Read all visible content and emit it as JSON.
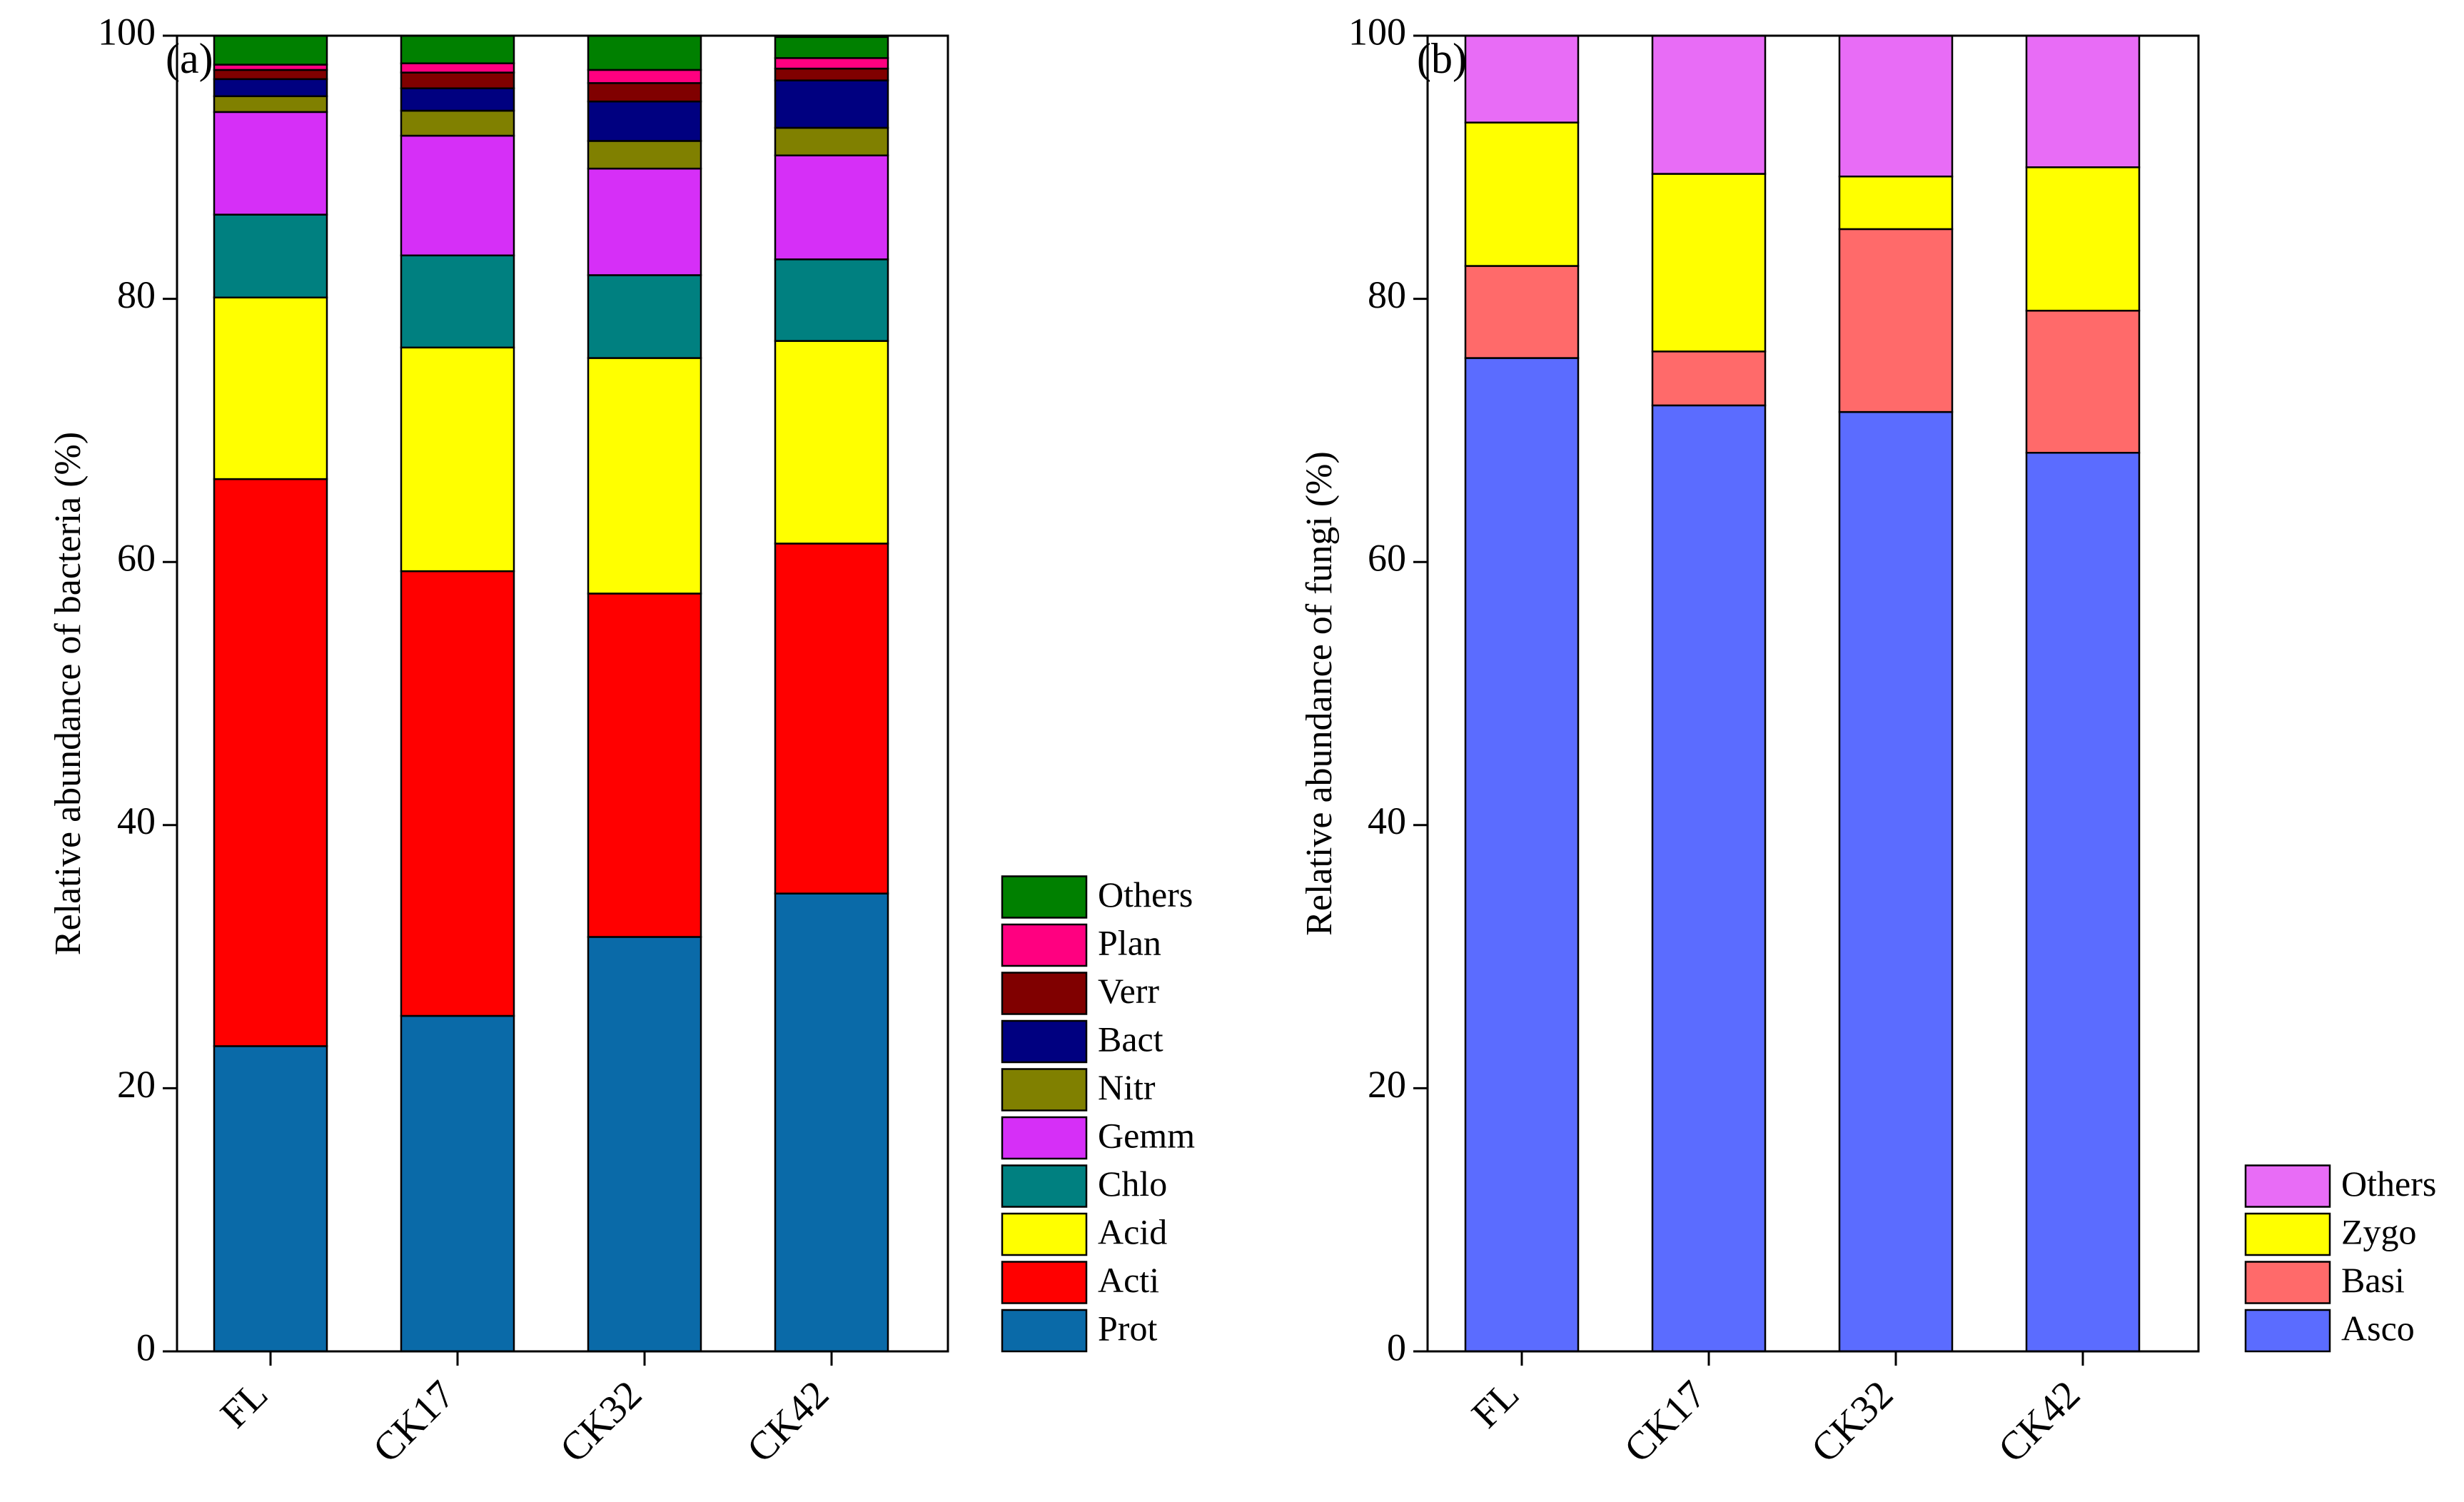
{
  "chart_data": [
    {
      "type": "stacked-bar",
      "panel_label": "(a)",
      "title": "",
      "xlabel": "",
      "ylabel": "Relative abundance of bacteria (%)",
      "ylim": [
        0,
        100
      ],
      "yticks": [
        "0",
        "20",
        "40",
        "60",
        "80",
        "100"
      ],
      "categories": [
        "FL",
        "CK17",
        "CK32",
        "CK42"
      ],
      "legend_position": "bottom-right-outside",
      "series": [
        {
          "name": "Prot",
          "color": "#0a6aa8",
          "values": [
            23.2,
            25.5,
            31.5,
            34.8
          ]
        },
        {
          "name": "Acti",
          "color": "#ff0000",
          "values": [
            43.1,
            33.8,
            26.1,
            26.6
          ]
        },
        {
          "name": "Acid",
          "color": "#ffff00",
          "values": [
            13.8,
            17.0,
            17.9,
            15.4
          ]
        },
        {
          "name": "Chlo",
          "color": "#008080",
          "values": [
            6.3,
            7.0,
            6.3,
            6.2
          ]
        },
        {
          "name": "Gemm",
          "color": "#d62ff7",
          "values": [
            7.8,
            9.1,
            8.1,
            7.9
          ]
        },
        {
          "name": "Nitr",
          "color": "#808000",
          "values": [
            1.2,
            1.9,
            2.1,
            2.1
          ]
        },
        {
          "name": "Bact",
          "color": "#000080",
          "values": [
            1.3,
            1.7,
            3.0,
            3.6
          ]
        },
        {
          "name": "Verr",
          "color": "#800000",
          "values": [
            0.7,
            1.2,
            1.4,
            0.9
          ]
        },
        {
          "name": "Plan",
          "color": "#ff0080",
          "values": [
            0.4,
            0.7,
            1.0,
            0.8
          ]
        },
        {
          "name": "Others",
          "color": "#008000",
          "values": [
            2.2,
            2.1,
            2.6,
            1.6
          ]
        }
      ]
    },
    {
      "type": "stacked-bar",
      "panel_label": "(b)",
      "title": "",
      "xlabel": "",
      "ylabel": "Relative abundance of fungi (%)",
      "ylim": [
        0,
        100
      ],
      "yticks": [
        "0",
        "20",
        "40",
        "60",
        "80",
        "100"
      ],
      "categories": [
        "FL",
        "CK17",
        "CK32",
        "CK42"
      ],
      "legend_position": "bottom-right-outside",
      "series": [
        {
          "name": "Asco",
          "color": "#5b6cff",
          "values": [
            75.5,
            71.9,
            71.4,
            68.3
          ]
        },
        {
          "name": "Basi",
          "color": "#ff6a6a",
          "values": [
            7.0,
            4.1,
            13.9,
            10.8
          ]
        },
        {
          "name": "Zygo",
          "color": "#ffff00",
          "values": [
            10.9,
            13.5,
            4.0,
            10.9
          ]
        },
        {
          "name": "Others",
          "color": "#e86cf6",
          "values": [
            6.6,
            10.5,
            10.7,
            10.0
          ]
        }
      ]
    }
  ]
}
